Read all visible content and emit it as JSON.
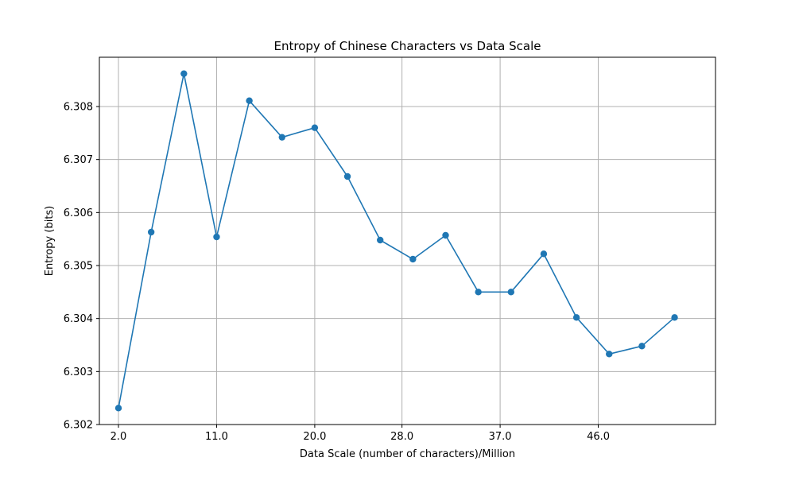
{
  "chart_data": {
    "type": "line",
    "title": "Entropy of Chinese Characters vs Data Scale",
    "xlabel": "Data Scale (number of characters)/Million",
    "ylabel": "Entropy (bits)",
    "xlim": [
      0.25,
      56.75
    ],
    "ylim": [
      6.302,
      6.30893
    ],
    "x_ticks": [
      2,
      11,
      20,
      28,
      37,
      46
    ],
    "x_tick_labels": [
      "2.0",
      "11.0",
      "20.0",
      "28.0",
      "37.0",
      "46.0"
    ],
    "y_ticks": [
      6.302,
      6.303,
      6.304,
      6.305,
      6.306,
      6.307,
      6.308
    ],
    "y_tick_labels": [
      "6.302",
      "6.303",
      "6.304",
      "6.305",
      "6.306",
      "6.307",
      "6.308"
    ],
    "grid": true,
    "series": [
      {
        "color": "#1f77b4",
        "marker": "circle",
        "points": [
          {
            "x": 2.0,
            "y": 6.30231
          },
          {
            "x": 5.0,
            "y": 6.30563
          },
          {
            "x": 8.0,
            "y": 6.30862
          },
          {
            "x": 11.0,
            "y": 6.30554
          },
          {
            "x": 14.0,
            "y": 6.30811
          },
          {
            "x": 17.0,
            "y": 6.30742
          },
          {
            "x": 20.0,
            "y": 6.3076
          },
          {
            "x": 23.0,
            "y": 6.30668
          },
          {
            "x": 26.0,
            "y": 6.30548
          },
          {
            "x": 29.0,
            "y": 6.30512
          },
          {
            "x": 32.0,
            "y": 6.30557
          },
          {
            "x": 35.0,
            "y": 6.3045
          },
          {
            "x": 38.0,
            "y": 6.3045
          },
          {
            "x": 41.0,
            "y": 6.30522
          },
          {
            "x": 44.0,
            "y": 6.30402
          },
          {
            "x": 47.0,
            "y": 6.30333
          },
          {
            "x": 50.0,
            "y": 6.30348
          },
          {
            "x": 53.0,
            "y": 6.30402
          }
        ]
      }
    ]
  }
}
